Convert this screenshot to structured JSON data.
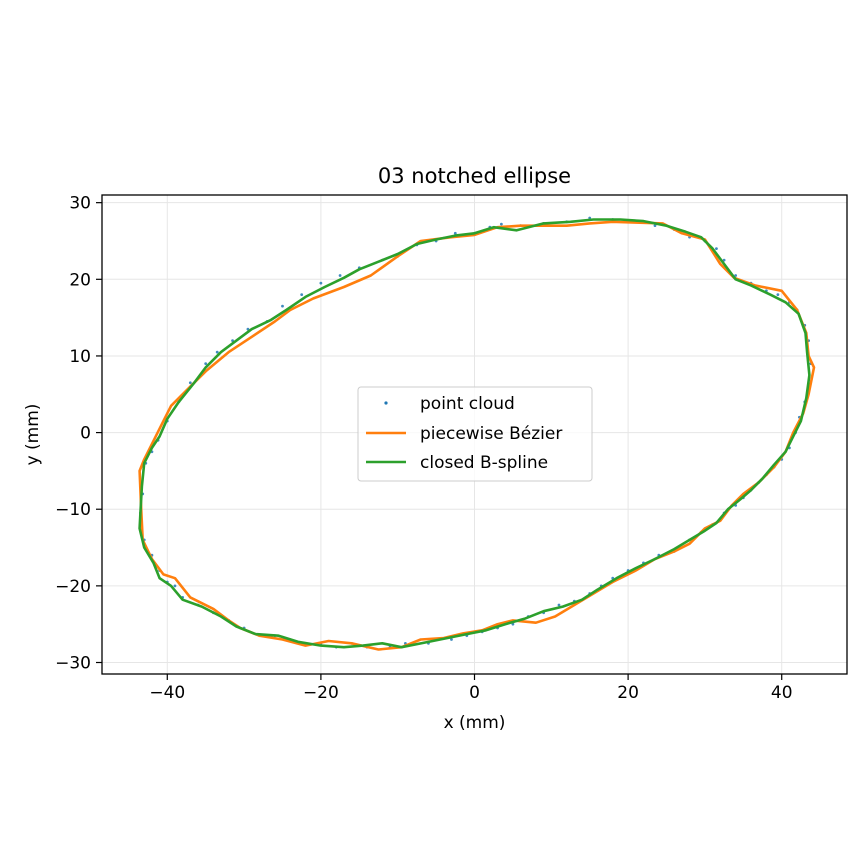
{
  "chart_data": {
    "type": "scatter",
    "title": "03 notched ellipse",
    "xlabel": "x (mm)",
    "ylabel": "y (mm)",
    "xlim": [
      -48.5,
      48.5
    ],
    "ylim": [
      -31.5,
      31
    ],
    "xticks": [
      -40,
      -20,
      0,
      20,
      40
    ],
    "yticks": [
      -30,
      -20,
      -10,
      0,
      10,
      20,
      30
    ],
    "xtick_labels": [
      "−40",
      "−20",
      "0",
      "20",
      "40"
    ],
    "ytick_labels": [
      "−30",
      "−20",
      "−10",
      "0",
      "10",
      "20",
      "30"
    ],
    "grid": true,
    "legend_position": "center",
    "series": [
      {
        "name": "point cloud",
        "kind": "points",
        "color": "#1f77b4",
        "points": [
          [
            -43.5,
            -10.5
          ],
          [
            -43.2,
            -8
          ],
          [
            -42.8,
            -4
          ],
          [
            -42,
            -2.5
          ],
          [
            -41.2,
            -1
          ],
          [
            -40,
            1.5
          ],
          [
            -38.5,
            4
          ],
          [
            -37,
            6.5
          ],
          [
            -35,
            9
          ],
          [
            -33.5,
            10.5
          ],
          [
            -31.5,
            12
          ],
          [
            -29.5,
            13.5
          ],
          [
            -27,
            14.5
          ],
          [
            -25,
            16.5
          ],
          [
            -22.5,
            18
          ],
          [
            -20,
            19.5
          ],
          [
            -17.5,
            20.5
          ],
          [
            -15,
            21.5
          ],
          [
            -12,
            22.5
          ],
          [
            -10,
            23
          ],
          [
            -7.5,
            24.5
          ],
          [
            -5,
            25
          ],
          [
            -2.5,
            26
          ],
          [
            0,
            26
          ],
          [
            2,
            26.8
          ],
          [
            3.5,
            27.2
          ],
          [
            6,
            27
          ],
          [
            9,
            27.3
          ],
          [
            12,
            27.5
          ],
          [
            15,
            28
          ],
          [
            18,
            27.8
          ],
          [
            21,
            27.5
          ],
          [
            23.5,
            27
          ],
          [
            26,
            26.5
          ],
          [
            28,
            25.5
          ],
          [
            30,
            25
          ],
          [
            31.5,
            24
          ],
          [
            32.5,
            22.5
          ],
          [
            34,
            20.5
          ],
          [
            36,
            19.5
          ],
          [
            38,
            18.5
          ],
          [
            39.5,
            18
          ],
          [
            41,
            17
          ],
          [
            42,
            16
          ],
          [
            43,
            14
          ],
          [
            43.5,
            12
          ],
          [
            43.8,
            9
          ],
          [
            43.5,
            6
          ],
          [
            43,
            4
          ],
          [
            42.3,
            2
          ],
          [
            41.8,
            0
          ],
          [
            41,
            -2
          ],
          [
            40,
            -3.5
          ],
          [
            39,
            -4.5
          ],
          [
            38,
            -5.5
          ],
          [
            37,
            -6.5
          ],
          [
            36,
            -7.5
          ],
          [
            35,
            -8.5
          ],
          [
            34,
            -9.5
          ],
          [
            32.5,
            -10.5
          ],
          [
            31,
            -12
          ],
          [
            29.5,
            -13
          ],
          [
            28,
            -14
          ],
          [
            26,
            -15.5
          ],
          [
            24,
            -16
          ],
          [
            22,
            -17
          ],
          [
            20,
            -18
          ],
          [
            18,
            -19
          ],
          [
            16.5,
            -20
          ],
          [
            15,
            -21
          ],
          [
            13,
            -22
          ],
          [
            11,
            -22.5
          ],
          [
            9,
            -23.5
          ],
          [
            7,
            -24
          ],
          [
            5,
            -25
          ],
          [
            3,
            -25.5
          ],
          [
            1,
            -26
          ],
          [
            -1,
            -26.5
          ],
          [
            -3,
            -27
          ],
          [
            -6,
            -27.5
          ],
          [
            -9,
            -27.5
          ],
          [
            -11,
            -28
          ],
          [
            -14,
            -28
          ],
          [
            -16,
            -27.5
          ],
          [
            -18,
            -28
          ],
          [
            -20,
            -27.5
          ],
          [
            -22,
            -27.5
          ],
          [
            -24,
            -27
          ],
          [
            -26,
            -26.5
          ],
          [
            -28,
            -26.5
          ],
          [
            -30,
            -25.5
          ],
          [
            -32,
            -24.5
          ],
          [
            -34,
            -23.5
          ],
          [
            -36,
            -22.5
          ],
          [
            -38,
            -21.5
          ],
          [
            -39,
            -20
          ],
          [
            -40,
            -19.5
          ],
          [
            -41,
            -18
          ],
          [
            -42,
            -16
          ],
          [
            -43,
            -14
          ],
          [
            -43.4,
            -12
          ]
        ]
      },
      {
        "name": "piecewise Bézier",
        "kind": "line",
        "color": "#ff7f0e",
        "points": [
          [
            -43.4,
            -10
          ],
          [
            -43.6,
            -5
          ],
          [
            -43,
            -3.5
          ],
          [
            -42,
            -1.5
          ],
          [
            -40.5,
            1.5
          ],
          [
            -39.5,
            3.5
          ],
          [
            -37,
            6
          ],
          [
            -35,
            8
          ],
          [
            -32,
            10.5
          ],
          [
            -29,
            12.5
          ],
          [
            -26,
            14.5
          ],
          [
            -24,
            16
          ],
          [
            -21,
            17.5
          ],
          [
            -17,
            19
          ],
          [
            -13.5,
            20.5
          ],
          [
            -10,
            23
          ],
          [
            -7,
            25
          ],
          [
            -3,
            25.5
          ],
          [
            0,
            25.8
          ],
          [
            3,
            26.8
          ],
          [
            6,
            27
          ],
          [
            9,
            27
          ],
          [
            12,
            27
          ],
          [
            15,
            27.3
          ],
          [
            18,
            27.5
          ],
          [
            21,
            27.4
          ],
          [
            24.5,
            27.3
          ],
          [
            27,
            26
          ],
          [
            30,
            25.2
          ],
          [
            32,
            22
          ],
          [
            33.8,
            20.2
          ],
          [
            36.5,
            19.2
          ],
          [
            40,
            18.5
          ],
          [
            42,
            16
          ],
          [
            43.2,
            13
          ],
          [
            43.5,
            10
          ],
          [
            44.2,
            8.5
          ],
          [
            43.5,
            5
          ],
          [
            42.8,
            2.5
          ],
          [
            41.5,
            0
          ],
          [
            40.5,
            -2.5
          ],
          [
            39,
            -4.5
          ],
          [
            37,
            -6.5
          ],
          [
            35,
            -8
          ],
          [
            33.5,
            -9.5
          ],
          [
            32,
            -11.5
          ],
          [
            30,
            -12.5
          ],
          [
            28,
            -14.5
          ],
          [
            26,
            -15.5
          ],
          [
            23.5,
            -16.5
          ],
          [
            21,
            -18
          ],
          [
            18,
            -19.5
          ],
          [
            15.5,
            -21
          ],
          [
            13,
            -22.5
          ],
          [
            10.5,
            -24
          ],
          [
            8,
            -24.8
          ],
          [
            5,
            -24.5
          ],
          [
            3,
            -25
          ],
          [
            1,
            -25.8
          ],
          [
            -1.5,
            -26.2
          ],
          [
            -4,
            -26.8
          ],
          [
            -7,
            -27
          ],
          [
            -9.5,
            -28
          ],
          [
            -12.5,
            -28.3
          ],
          [
            -16,
            -27.5
          ],
          [
            -19,
            -27.2
          ],
          [
            -22,
            -27.8
          ],
          [
            -25,
            -27
          ],
          [
            -28,
            -26.5
          ],
          [
            -30.5,
            -25.5
          ],
          [
            -32,
            -24.5
          ],
          [
            -34,
            -23
          ],
          [
            -37,
            -21.5
          ],
          [
            -39,
            -19
          ],
          [
            -40.5,
            -18.5
          ],
          [
            -42,
            -16.5
          ],
          [
            -43.2,
            -14
          ],
          [
            -43.4,
            -10
          ]
        ]
      },
      {
        "name": "closed B-spline",
        "kind": "line",
        "color": "#2ca02c",
        "points": [
          [
            -43.5,
            -10.5
          ],
          [
            -43.3,
            -7
          ],
          [
            -43,
            -4
          ],
          [
            -42,
            -2
          ],
          [
            -41,
            -0.5
          ],
          [
            -40,
            1.8
          ],
          [
            -38.5,
            4
          ],
          [
            -36.5,
            6.5
          ],
          [
            -35,
            8.5
          ],
          [
            -33,
            10.5
          ],
          [
            -31,
            12
          ],
          [
            -29,
            13.5
          ],
          [
            -26.5,
            14.7
          ],
          [
            -24.5,
            16
          ],
          [
            -22,
            17.7
          ],
          [
            -19.5,
            19
          ],
          [
            -17,
            20.2
          ],
          [
            -15,
            21.3
          ],
          [
            -12.5,
            22.3
          ],
          [
            -10,
            23.3
          ],
          [
            -7.5,
            24.6
          ],
          [
            -5,
            25.2
          ],
          [
            -2.5,
            25.7
          ],
          [
            0,
            26
          ],
          [
            2.5,
            26.8
          ],
          [
            5.5,
            26.4
          ],
          [
            9,
            27.3
          ],
          [
            12.5,
            27.5
          ],
          [
            15.5,
            27.8
          ],
          [
            19,
            27.8
          ],
          [
            22,
            27.6
          ],
          [
            25,
            27
          ],
          [
            27.5,
            26.2
          ],
          [
            29.5,
            25.5
          ],
          [
            31,
            24
          ],
          [
            32.5,
            22
          ],
          [
            34,
            20
          ],
          [
            36,
            19.2
          ],
          [
            38.5,
            18
          ],
          [
            40.5,
            17
          ],
          [
            42.2,
            15.5
          ],
          [
            43.1,
            13
          ],
          [
            43.3,
            10.5
          ],
          [
            43.6,
            7.5
          ],
          [
            43.2,
            4.5
          ],
          [
            42.5,
            1.5
          ],
          [
            41.5,
            -0.5
          ],
          [
            40.5,
            -2.5
          ],
          [
            39,
            -4.2
          ],
          [
            37.5,
            -6
          ],
          [
            36,
            -7.5
          ],
          [
            34.5,
            -8.8
          ],
          [
            33,
            -10
          ],
          [
            31.5,
            -11.8
          ],
          [
            30,
            -12.8
          ],
          [
            28,
            -14
          ],
          [
            26,
            -15.2
          ],
          [
            23.5,
            -16.5
          ],
          [
            21,
            -17.7
          ],
          [
            18.5,
            -19
          ],
          [
            16,
            -20.5
          ],
          [
            14,
            -21.8
          ],
          [
            11.5,
            -22.7
          ],
          [
            9,
            -23.3
          ],
          [
            6.5,
            -24.3
          ],
          [
            4,
            -25
          ],
          [
            1.5,
            -25.8
          ],
          [
            -1,
            -26.3
          ],
          [
            -3.5,
            -26.8
          ],
          [
            -6.5,
            -27.4
          ],
          [
            -9.5,
            -28
          ],
          [
            -12,
            -27.5
          ],
          [
            -14.5,
            -27.8
          ],
          [
            -17,
            -28
          ],
          [
            -20,
            -27.8
          ],
          [
            -23,
            -27.3
          ],
          [
            -25.5,
            -26.5
          ],
          [
            -28.5,
            -26.3
          ],
          [
            -31,
            -25.3
          ],
          [
            -33,
            -24
          ],
          [
            -35.5,
            -22.7
          ],
          [
            -38,
            -21.8
          ],
          [
            -39.5,
            -20
          ],
          [
            -41,
            -19
          ],
          [
            -41.8,
            -17
          ],
          [
            -43,
            -15
          ],
          [
            -43.6,
            -12.5
          ],
          [
            -43.5,
            -10.5
          ]
        ]
      }
    ]
  }
}
